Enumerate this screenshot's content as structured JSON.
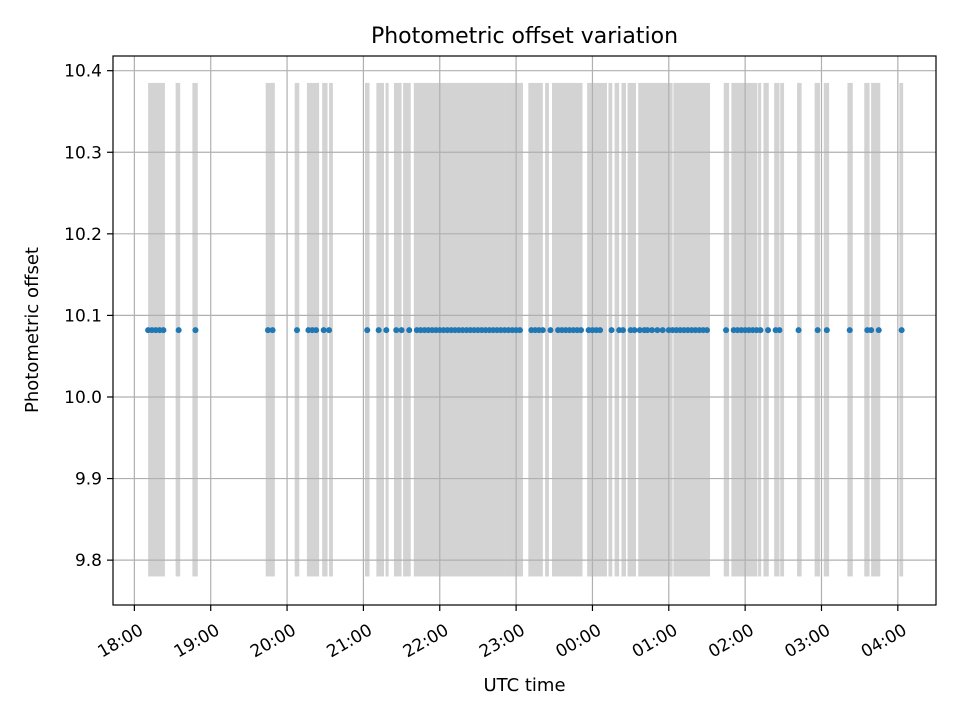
{
  "chart_data": {
    "type": "scatter",
    "title": "Photometric offset variation",
    "xlabel": "UTC time",
    "ylabel": "Photometric offset",
    "x_unit": "hours",
    "xlim": [
      17.72,
      28.5
    ],
    "ylim": [
      9.745,
      10.418
    ],
    "grid": true,
    "legend": "none",
    "x_ticks": [
      {
        "value": 18,
        "label": "18:00"
      },
      {
        "value": 19,
        "label": "19:00"
      },
      {
        "value": 20,
        "label": "20:00"
      },
      {
        "value": 21,
        "label": "21:00"
      },
      {
        "value": 22,
        "label": "22:00"
      },
      {
        "value": 23,
        "label": "23:00"
      },
      {
        "value": 24,
        "label": "00:00"
      },
      {
        "value": 25,
        "label": "01:00"
      },
      {
        "value": 26,
        "label": "02:00"
      },
      {
        "value": 27,
        "label": "03:00"
      },
      {
        "value": 28,
        "label": "04:00"
      }
    ],
    "y_ticks": [
      {
        "value": 9.8,
        "label": "9.8"
      },
      {
        "value": 9.9,
        "label": "9.9"
      },
      {
        "value": 10.0,
        "label": "10.0"
      },
      {
        "value": 10.1,
        "label": "10.1"
      },
      {
        "value": 10.2,
        "label": "10.2"
      },
      {
        "value": 10.3,
        "label": "10.3"
      },
      {
        "value": 10.4,
        "label": "10.4"
      }
    ],
    "series": [
      {
        "name": "",
        "color": "#1f77b4",
        "y_value": 10.082,
        "x": [
          18.18,
          18.23,
          18.28,
          18.33,
          18.38,
          18.58,
          18.8,
          19.75,
          19.81,
          20.13,
          20.28,
          20.33,
          20.38,
          20.48,
          20.55,
          21.05,
          21.2,
          21.3,
          21.43,
          21.5,
          21.6,
          21.7,
          21.75,
          21.8,
          21.85,
          21.9,
          21.95,
          22.0,
          22.05,
          22.1,
          22.15,
          22.2,
          22.25,
          22.3,
          22.35,
          22.4,
          22.45,
          22.5,
          22.55,
          22.6,
          22.65,
          22.7,
          22.75,
          22.8,
          22.85,
          22.9,
          22.95,
          23.0,
          23.05,
          23.2,
          23.25,
          23.3,
          23.35,
          23.45,
          23.55,
          23.6,
          23.65,
          23.7,
          23.75,
          23.8,
          23.85,
          23.95,
          24.0,
          24.05,
          24.1,
          24.25,
          24.35,
          24.4,
          24.5,
          24.55,
          24.62,
          24.68,
          24.72,
          24.78,
          24.85,
          24.92,
          25.0,
          25.05,
          25.1,
          25.15,
          25.2,
          25.25,
          25.3,
          25.35,
          25.4,
          25.45,
          25.5,
          25.75,
          25.85,
          25.9,
          25.95,
          26.0,
          26.05,
          26.1,
          26.15,
          26.2,
          26.3,
          26.4,
          26.45,
          26.7,
          26.95,
          27.07,
          27.37,
          27.6,
          27.65,
          27.75,
          28.05
        ]
      }
    ],
    "shaded_intervals": {
      "color": "#d3d3d3",
      "y_range": [
        9.78,
        10.385
      ],
      "intervals": [
        [
          18.18,
          18.4
        ],
        [
          18.54,
          18.6
        ],
        [
          18.76,
          18.83
        ],
        [
          19.72,
          19.84
        ],
        [
          20.1,
          20.16
        ],
        [
          20.26,
          20.42
        ],
        [
          20.46,
          20.53
        ],
        [
          20.55,
          20.6
        ],
        [
          21.02,
          21.08
        ],
        [
          21.17,
          21.27
        ],
        [
          21.29,
          21.33
        ],
        [
          21.4,
          21.5
        ],
        [
          21.52,
          21.62
        ],
        [
          21.66,
          22.86
        ],
        [
          22.86,
          23.09
        ],
        [
          23.16,
          23.35
        ],
        [
          23.38,
          23.43
        ],
        [
          23.47,
          23.87
        ],
        [
          23.93,
          24.19
        ],
        [
          24.21,
          24.26
        ],
        [
          24.29,
          24.35
        ],
        [
          24.38,
          24.44
        ],
        [
          24.46,
          24.57
        ],
        [
          24.6,
          25.05
        ],
        [
          25.06,
          25.54
        ],
        [
          25.72,
          25.79
        ],
        [
          25.82,
          26.16
        ],
        [
          26.17,
          26.21
        ],
        [
          26.24,
          26.31
        ],
        [
          26.38,
          26.45
        ],
        [
          26.46,
          26.51
        ],
        [
          26.68,
          26.74
        ],
        [
          26.91,
          26.98
        ],
        [
          27.03,
          27.1
        ],
        [
          27.34,
          27.41
        ],
        [
          27.56,
          27.63
        ],
        [
          27.65,
          27.77
        ],
        [
          28.02,
          28.07
        ]
      ]
    }
  }
}
